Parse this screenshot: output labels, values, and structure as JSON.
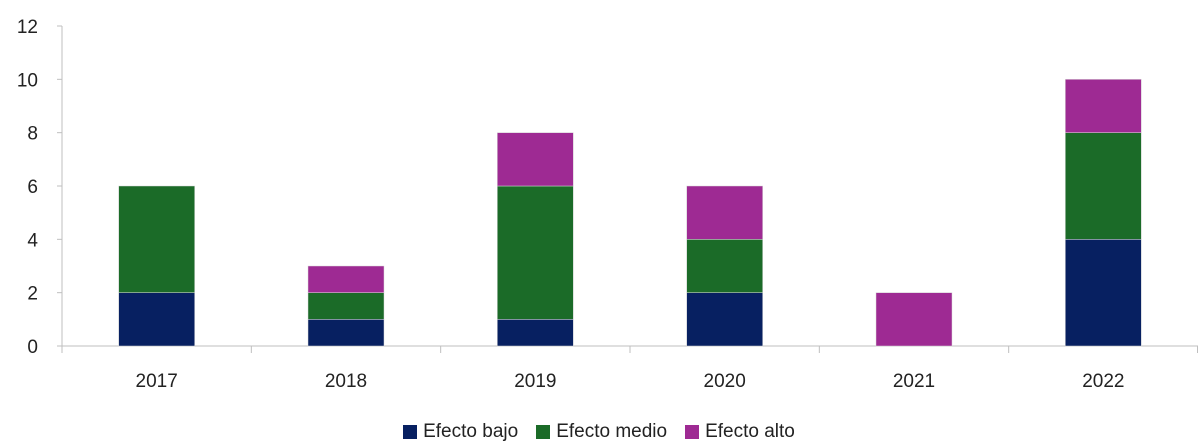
{
  "chart_data": {
    "type": "bar",
    "stacked": true,
    "categories": [
      "2017",
      "2018",
      "2019",
      "2020",
      "2021",
      "2022"
    ],
    "series": [
      {
        "name": "Efecto bajo",
        "color": "#072061",
        "values": [
          2,
          1,
          1,
          2,
          0,
          4
        ]
      },
      {
        "name": "Efecto medio",
        "color": "#1B6B28",
        "values": [
          4,
          1,
          5,
          2,
          0,
          4
        ]
      },
      {
        "name": "Efecto alto",
        "color": "#9E2A93",
        "values": [
          0,
          1,
          2,
          2,
          2,
          2
        ]
      }
    ],
    "yticks": [
      "0",
      "2",
      "4",
      "6",
      "8",
      "10",
      "12"
    ],
    "ylim": [
      0,
      12
    ],
    "grid": false,
    "legend_position": "bottom-center",
    "axis_color": "#BFBFBF"
  }
}
